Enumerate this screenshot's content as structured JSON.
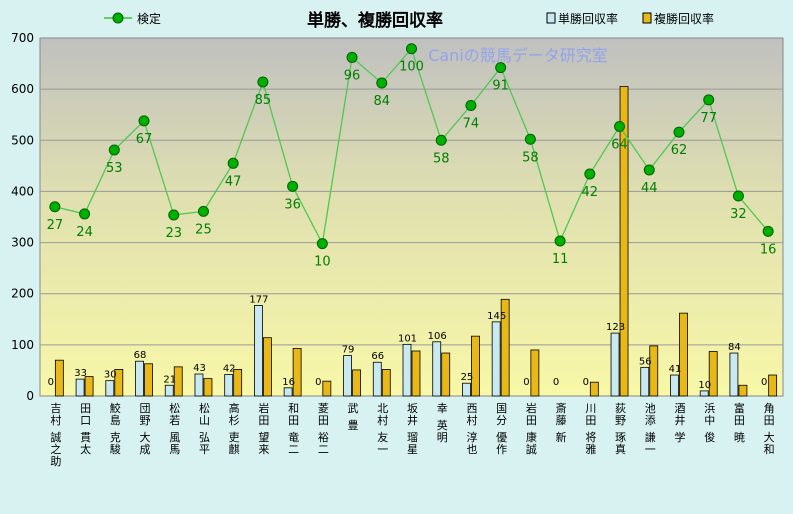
{
  "chart_data": {
    "type": "bar",
    "title": "単勝、複勝回収率",
    "watermark": "Caniの競馬データ研究室",
    "legend": {
      "line_label": "検定",
      "bar1_label": "単勝回収率",
      "bar2_label": "複勝回収率"
    },
    "ylim": [
      0,
      700
    ],
    "yticks": [
      0,
      100,
      200,
      300,
      400,
      500,
      600,
      700
    ],
    "categories": [
      "吉村 誠之助",
      "田口 貫太",
      "鮫島 克駿",
      "団野 大成",
      "松若 風馬",
      "松山 弘平",
      "高杉 吏麒",
      "岩田 望来",
      "和田 竜二",
      "菱田 裕二",
      "武 豊",
      "北村 友一",
      "坂井 瑠星",
      "幸 英明",
      "西村 淳也",
      "国分 優作",
      "岩田 康誠",
      "斎藤 新",
      "川田 将雅",
      "荻野 琢真",
      "池添 謙一",
      "酒井 学",
      "浜中 俊",
      "富田 暁",
      "角田 大和"
    ],
    "series": [
      {
        "name": "単勝回収率",
        "values": [
          0,
          33,
          30,
          68,
          21,
          43,
          42,
          177,
          16,
          0,
          79,
          66,
          101,
          106,
          25,
          145,
          0,
          0,
          0,
          123,
          56,
          41,
          10,
          84,
          0
        ],
        "color": "#c8e8f2"
      },
      {
        "name": "複勝回収率",
        "values": [
          70,
          38,
          52,
          63,
          57,
          34,
          52,
          114,
          93,
          29,
          51,
          52,
          88,
          84,
          117,
          189,
          90,
          0,
          27,
          605,
          98,
          162,
          87,
          21,
          41
        ],
        "color": "#e8b818"
      },
      {
        "name": "検定",
        "values": [
          370,
          356,
          481,
          538,
          354,
          361,
          455,
          614,
          410,
          298,
          662,
          612,
          679,
          500,
          568,
          642,
          502,
          303,
          434,
          527,
          442,
          516,
          579,
          391,
          322
        ],
        "labels": [
          27,
          24,
          53,
          67,
          23,
          25,
          47,
          85,
          36,
          10,
          96,
          84,
          100,
          58,
          74,
          91,
          58,
          11,
          42,
          64,
          44,
          62,
          77,
          32,
          16
        ],
        "color": "#00a000"
      }
    ]
  }
}
